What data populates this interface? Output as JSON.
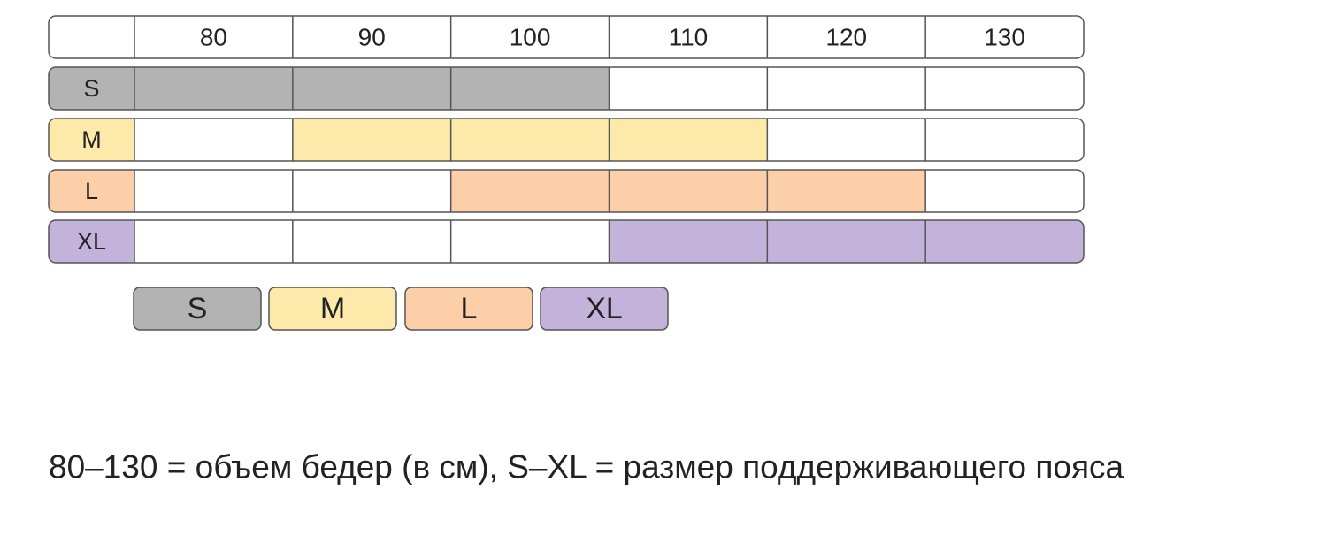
{
  "table": {
    "columns": [
      "80",
      "90",
      "100",
      "110",
      "120",
      "130"
    ],
    "rows": [
      {
        "label": "S",
        "color": "#b3b3b3",
        "cells": [
          true,
          true,
          true,
          false,
          false,
          false
        ]
      },
      {
        "label": "M",
        "color": "#fde9a9",
        "cells": [
          false,
          true,
          true,
          true,
          false,
          false
        ]
      },
      {
        "label": "L",
        "color": "#fccfa8",
        "cells": [
          false,
          false,
          true,
          true,
          true,
          false
        ]
      },
      {
        "label": "XL",
        "color": "#c3b3da",
        "cells": [
          false,
          false,
          false,
          true,
          true,
          true
        ]
      }
    ]
  },
  "legend": [
    {
      "label": "S",
      "color": "#b3b3b3"
    },
    {
      "label": "M",
      "color": "#fde9a9"
    },
    {
      "label": "L",
      "color": "#fccfa8"
    },
    {
      "label": "XL",
      "color": "#c3b3da"
    }
  ],
  "caption": "80–130 = объем бедер (в см), S–XL = размер поддерживающего пояса"
}
